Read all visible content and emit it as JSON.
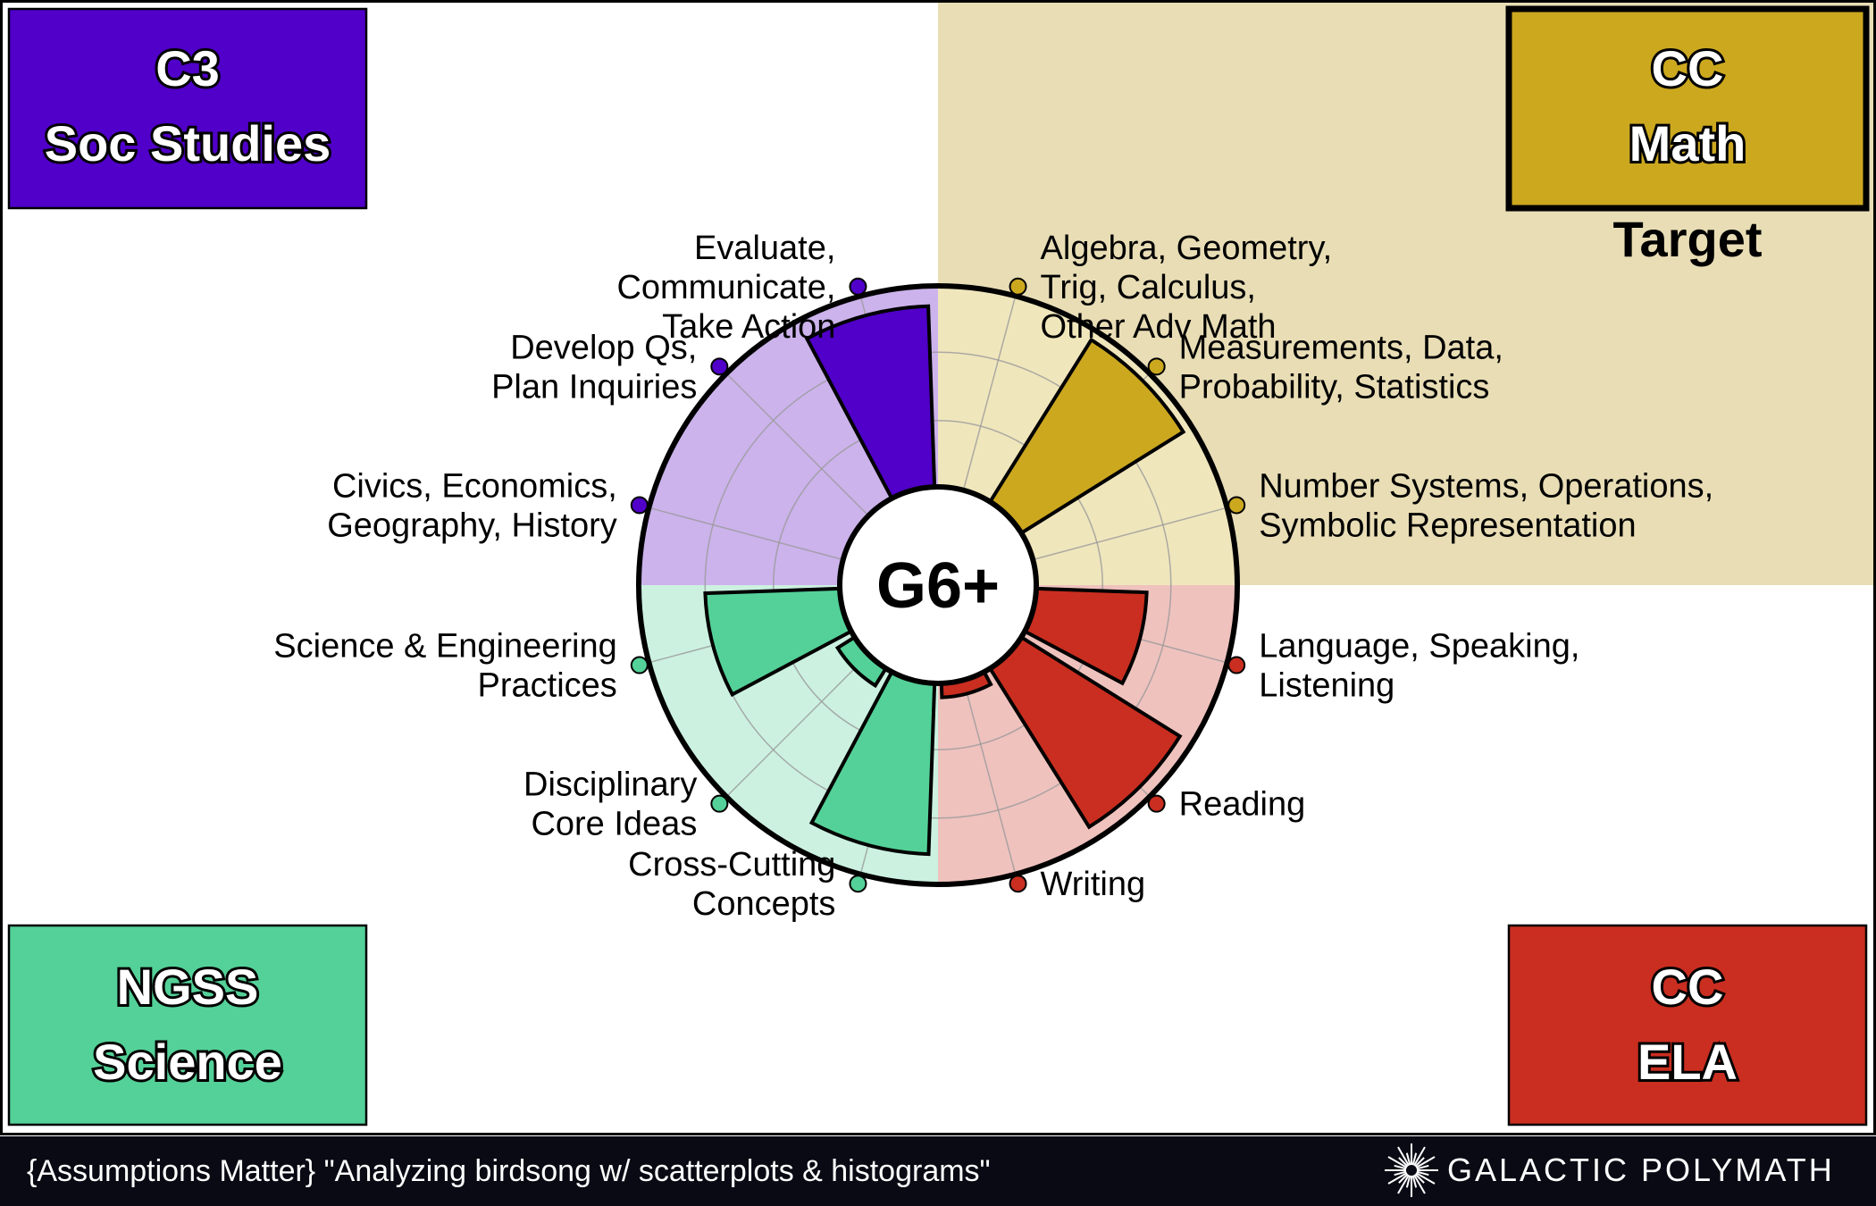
{
  "center_label": "G6+",
  "target_label": "Target",
  "corners": {
    "soc": {
      "line1": "C3",
      "line2": "Soc Studies",
      "color": "#5000C8",
      "light": "#CCB3EC"
    },
    "math": {
      "line1": "CC",
      "line2": "Math",
      "color": "#CCA81F",
      "light": "#F0E6BC",
      "panel": "#E8DDB5"
    },
    "sci": {
      "line1": "NGSS",
      "line2": "Science",
      "color": "#54D198",
      "light": "#CCF1E0"
    },
    "ela": {
      "line1": "CC",
      "line2": "ELA",
      "color": "#C92E20",
      "light": "#EFC2BE"
    }
  },
  "footer": {
    "text": "{Assumptions Matter} \"Analyzing birdsong w/ scatterplots & histograms\"",
    "brand": "GALACTIC POLYMATH"
  },
  "chart_data": {
    "type": "polar-bar",
    "radial_range": [
      0,
      1
    ],
    "categories": [
      {
        "id": "math1",
        "group": "math",
        "label": [
          "Algebra, Geometry,",
          "Trig, Calculus,",
          "Other Adv Math"
        ],
        "value": 0
      },
      {
        "id": "math2",
        "group": "math",
        "label": [
          "Measurements, Data,",
          "Probability, Statistics"
        ],
        "value": 0.95
      },
      {
        "id": "math3",
        "group": "math",
        "label": [
          "Number Systems, Operations,",
          "Symbolic Representation"
        ],
        "value": 0
      },
      {
        "id": "ela1",
        "group": "ela",
        "label": [
          "Language, Speaking,",
          "Listening"
        ],
        "value": 0.55
      },
      {
        "id": "ela2",
        "group": "ela",
        "label": [
          "Reading"
        ],
        "value": 0.93
      },
      {
        "id": "ela3",
        "group": "ela",
        "label": [
          "Writing"
        ],
        "value": 0.07
      },
      {
        "id": "sci1",
        "group": "sci",
        "label": [
          "Cross-Cutting",
          "Concepts"
        ],
        "value": 0.85
      },
      {
        "id": "sci2",
        "group": "sci",
        "label": [
          "Disciplinary",
          "Core Ideas"
        ],
        "value": 0.1
      },
      {
        "id": "sci3",
        "group": "sci",
        "label": [
          "Science & Engineering",
          "Practices"
        ],
        "value": 0.67
      },
      {
        "id": "soc1",
        "group": "soc",
        "label": [
          "Civics, Economics,",
          "Geography, History"
        ],
        "value": 0
      },
      {
        "id": "soc2",
        "group": "soc",
        "label": [
          "Develop Qs,",
          "Plan Inquiries"
        ],
        "value": 0
      },
      {
        "id": "soc3",
        "group": "soc",
        "label": [
          "Evaluate,",
          "Communicate,",
          "Take Action"
        ],
        "value": 0.9
      }
    ]
  }
}
